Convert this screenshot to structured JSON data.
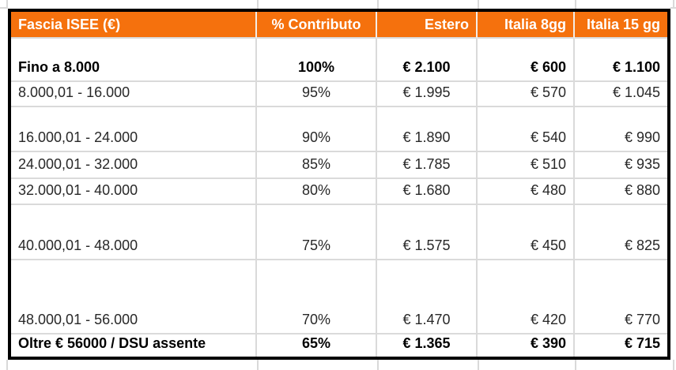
{
  "table": {
    "columns": [
      {
        "label": "Fascia ISEE (€)"
      },
      {
        "label": "% Contributo"
      },
      {
        "label": "Estero"
      },
      {
        "label": "Italia 8gg"
      },
      {
        "label": "Italia 15 gg"
      }
    ],
    "rows": [
      {
        "cells": [
          "Fino a 8.000",
          "100%",
          "€ 2.100",
          "€ 600",
          "€ 1.100"
        ],
        "bold": true
      },
      {
        "cells": [
          "8.000,01 - 16.000",
          "95%",
          "€ 1.995",
          "€ 570",
          "€ 1.045"
        ],
        "bold": false
      },
      {
        "cells": [
          "16.000,01 - 24.000",
          "90%",
          "€ 1.890",
          "€ 540",
          "€ 990"
        ],
        "bold": false
      },
      {
        "cells": [
          "24.000,01 - 32.000",
          "85%",
          "€ 1.785",
          "€ 510",
          "€ 935"
        ],
        "bold": false
      },
      {
        "cells": [
          "32.000,01 - 40.000",
          "80%",
          "€ 1.680",
          "€ 480",
          "€ 880"
        ],
        "bold": false
      },
      {
        "cells": [
          "40.000,01 - 48.000",
          "75%",
          "€ 1.575",
          "€ 450",
          "€ 825"
        ],
        "bold": false
      },
      {
        "cells": [
          "48.000,01 - 56.000",
          "70%",
          "€ 1.470",
          "€ 420",
          "€ 770"
        ],
        "bold": false
      },
      {
        "cells": [
          "Oltre € 56000 / DSU assente",
          "65%",
          "€ 1.365",
          "€ 390",
          "€ 715"
        ],
        "bold": true
      }
    ]
  },
  "colors": {
    "header_bg": "#f5710d",
    "header_text": "#ffffff",
    "outer_border": "#000000",
    "gridline": "#dadada",
    "text": "#282828"
  }
}
